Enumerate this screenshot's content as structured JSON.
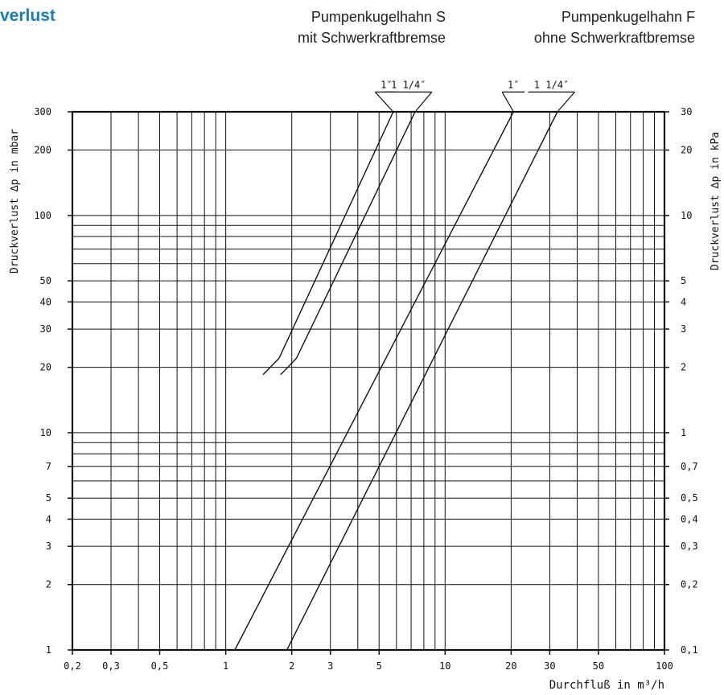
{
  "title": "verlust",
  "header_s": {
    "line1": "Pumpenkugelhahn S",
    "line2": "mit Schwerkraftbremse"
  },
  "header_f": {
    "line1": "Pumpenkugelhahn F",
    "line2": "ohne Schwerkraftbremse"
  },
  "chart_data": {
    "type": "line",
    "xlabel": "Durchfluß  in  m³/h",
    "ylabel_left": "Druckverlust  ∆p  in  mbar",
    "ylabel_right": "Druckverlust  ∆p  in  kPa",
    "xscale": "log",
    "yscale": "log",
    "xlim": [
      0.2,
      100
    ],
    "ylim": [
      1,
      300
    ],
    "grid": true,
    "x_ticks": [
      {
        "v": 0.2,
        "label": "0,2"
      },
      {
        "v": 0.3,
        "label": "0,3"
      },
      {
        "v": 0.5,
        "label": "0,5"
      },
      {
        "v": 1,
        "label": "1"
      },
      {
        "v": 2,
        "label": "2"
      },
      {
        "v": 3,
        "label": "3"
      },
      {
        "v": 5,
        "label": "5"
      },
      {
        "v": 10,
        "label": "10"
      },
      {
        "v": 20,
        "label": "20"
      },
      {
        "v": 30,
        "label": "30"
      },
      {
        "v": 50,
        "label": "50"
      },
      {
        "v": 100,
        "label": "100"
      }
    ],
    "y_ticks_left": [
      {
        "v": 1,
        "label": "1"
      },
      {
        "v": 2,
        "label": "2"
      },
      {
        "v": 3,
        "label": "3"
      },
      {
        "v": 4,
        "label": "4"
      },
      {
        "v": 5,
        "label": "5"
      },
      {
        "v": 7,
        "label": "7"
      },
      {
        "v": 10,
        "label": "10"
      },
      {
        "v": 20,
        "label": "20"
      },
      {
        "v": 30,
        "label": "30"
      },
      {
        "v": 40,
        "label": "40"
      },
      {
        "v": 50,
        "label": "50"
      },
      {
        "v": 100,
        "label": "100"
      },
      {
        "v": 200,
        "label": "200"
      },
      {
        "v": 300,
        "label": "300"
      }
    ],
    "y_ticks_right": [
      {
        "v": 1,
        "label": "0,1"
      },
      {
        "v": 2,
        "label": "0,2"
      },
      {
        "v": 3,
        "label": "0,3"
      },
      {
        "v": 4,
        "label": "0,4"
      },
      {
        "v": 5,
        "label": "0,5"
      },
      {
        "v": 7,
        "label": "0,7"
      },
      {
        "v": 10,
        "label": "1"
      },
      {
        "v": 20,
        "label": "2"
      },
      {
        "v": 30,
        "label": "3"
      },
      {
        "v": 40,
        "label": "4"
      },
      {
        "v": 50,
        "label": "5"
      },
      {
        "v": 100,
        "label": "10"
      },
      {
        "v": 200,
        "label": "20"
      },
      {
        "v": 300,
        "label": "30"
      }
    ],
    "series": [
      {
        "name": "1″",
        "group": "Pumpenkugelhahn S",
        "points": [
          [
            1.48,
            18.5
          ],
          [
            1.75,
            22
          ],
          [
            5.8,
            300
          ]
        ],
        "leader": {
          "from": [
            5.8,
            300
          ],
          "to": [
            4.8,
            370
          ]
        }
      },
      {
        "name": "1 1/4″",
        "group": "Pumpenkugelhahn S",
        "points": [
          [
            1.78,
            18.5
          ],
          [
            2.1,
            22
          ],
          [
            7.3,
            300
          ]
        ],
        "leader": {
          "from": [
            7.3,
            300
          ],
          "to": [
            8.7,
            370
          ]
        }
      },
      {
        "name": "1″",
        "group": "Pumpenkugelhahn F",
        "points": [
          [
            1.1,
            1
          ],
          [
            20.5,
            300
          ]
        ],
        "leader": {
          "from": [
            20.5,
            300
          ],
          "to": [
            18.2,
            370
          ]
        }
      },
      {
        "name": "1 1/4″",
        "group": "Pumpenkugelhahn F",
        "points": [
          [
            1.9,
            1
          ],
          [
            32.5,
            300
          ]
        ],
        "leader": {
          "from": [
            32.5,
            300
          ],
          "to": [
            39,
            370
          ]
        }
      }
    ]
  }
}
